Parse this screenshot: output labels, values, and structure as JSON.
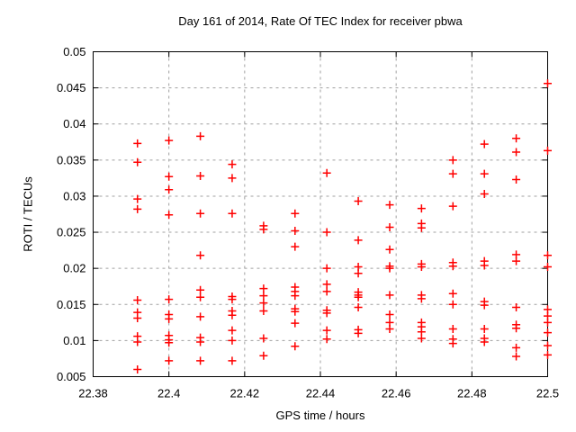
{
  "chart_data": {
    "type": "scatter",
    "title": "Day 161 of 2014, Rate Of TEC Index for receiver pbwa",
    "xlabel": "GPS time / hours",
    "ylabel": "ROTI / TECUs",
    "xlim": [
      22.38,
      22.5
    ],
    "ylim": [
      0.005,
      0.05
    ],
    "xticks": {
      "values": [
        22.38,
        22.4,
        22.42,
        22.44,
        22.46,
        22.48,
        22.5
      ],
      "labels": [
        "22.38",
        "22.4",
        "22.42",
        "22.44",
        "22.46",
        "22.48",
        "22.5"
      ]
    },
    "yticks": {
      "values": [
        0.005,
        0.01,
        0.015,
        0.02,
        0.025,
        0.03,
        0.035,
        0.04,
        0.045,
        0.05
      ],
      "labels": [
        "0.005",
        "0.01",
        "0.015",
        "0.02",
        "0.025",
        "0.03",
        "0.035",
        "0.04",
        "0.045",
        "0.05"
      ]
    },
    "grid": true,
    "legend": "none",
    "grid_color": "#a0a0a0",
    "axis_color": "#000000",
    "marker": {
      "shape": "plus",
      "color": "#ff0000",
      "size": 9
    },
    "series": [
      {
        "name": "ROTI",
        "groups": [
          {
            "x": 22.3917,
            "y": [
              0.0373,
              0.0347,
              0.0296,
              0.0282,
              0.0156,
              0.0139,
              0.0131,
              0.0106,
              0.0098,
              0.006
            ]
          },
          {
            "x": 22.4,
            "y": [
              0.0377,
              0.0327,
              0.0309,
              0.0274,
              0.0157,
              0.0136,
              0.013,
              0.0107,
              0.0101,
              0.0097,
              0.0072
            ]
          },
          {
            "x": 22.4083,
            "y": [
              0.0383,
              0.0328,
              0.0276,
              0.0218,
              0.017,
              0.016,
              0.0133,
              0.0104,
              0.0098,
              0.0072
            ]
          },
          {
            "x": 22.4167,
            "y": [
              0.0344,
              0.0325,
              0.0276,
              0.0161,
              0.0157,
              0.0141,
              0.0135,
              0.0114,
              0.01,
              0.0072
            ]
          },
          {
            "x": 22.425,
            "y": [
              0.0259,
              0.0254,
              0.0172,
              0.0162,
              0.0152,
              0.0141,
              0.0103,
              0.0079
            ]
          },
          {
            "x": 22.4333,
            "y": [
              0.0276,
              0.0252,
              0.023,
              0.0174,
              0.0168,
              0.0162,
              0.0144,
              0.014,
              0.0124,
              0.0092
            ]
          },
          {
            "x": 22.4417,
            "y": [
              0.0332,
              0.025,
              0.02,
              0.0178,
              0.0168,
              0.0142,
              0.0138,
              0.0114,
              0.0102
            ]
          },
          {
            "x": 22.45,
            "y": [
              0.0293,
              0.0239,
              0.0202,
              0.0193,
              0.0167,
              0.0163,
              0.016,
              0.0146,
              0.0115,
              0.011
            ]
          },
          {
            "x": 22.4583,
            "y": [
              0.0288,
              0.0257,
              0.0226,
              0.0203,
              0.02,
              0.0163,
              0.0136,
              0.0125,
              0.0116
            ]
          },
          {
            "x": 22.4667,
            "y": [
              0.0283,
              0.0262,
              0.0256,
              0.0206,
              0.0202,
              0.0163,
              0.0158,
              0.0125,
              0.0119,
              0.0112,
              0.0103
            ]
          },
          {
            "x": 22.475,
            "y": [
              0.035,
              0.0331,
              0.0286,
              0.0208,
              0.0203,
              0.0165,
              0.015,
              0.0116,
              0.0102,
              0.0096
            ]
          },
          {
            "x": 22.4833,
            "y": [
              0.0372,
              0.0331,
              0.0303,
              0.021,
              0.0204,
              0.0154,
              0.0149,
              0.0116,
              0.0103,
              0.0098
            ]
          },
          {
            "x": 22.4917,
            "y": [
              0.038,
              0.0361,
              0.0323,
              0.0219,
              0.021,
              0.0146,
              0.0122,
              0.0117,
              0.009,
              0.0078
            ]
          },
          {
            "x": 22.5,
            "y": [
              0.0456,
              0.0363,
              0.0218,
              0.0202,
              0.0143,
              0.0134,
              0.0125,
              0.0111,
              0.0093,
              0.008
            ]
          }
        ]
      }
    ]
  }
}
